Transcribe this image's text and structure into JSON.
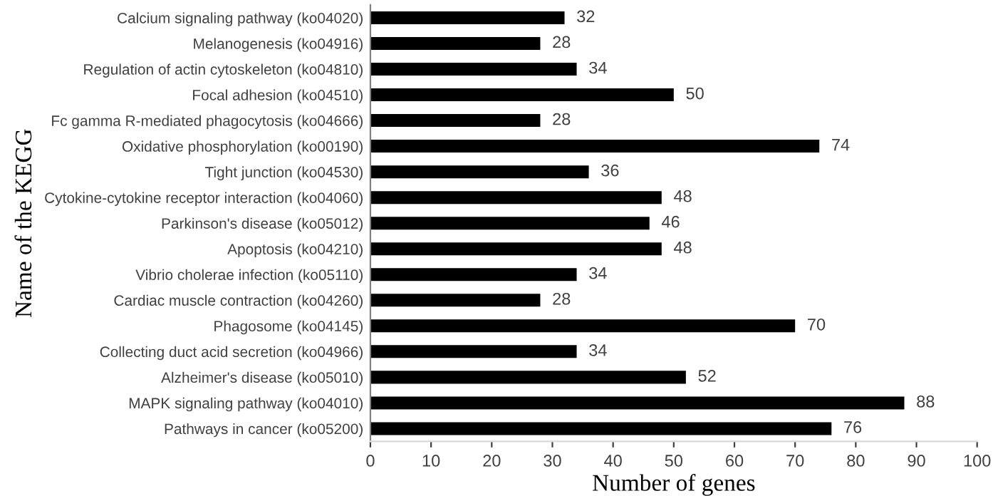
{
  "chart_data": {
    "type": "bar",
    "orientation": "horizontal",
    "xlabel": "Number of genes",
    "ylabel": "Name of the KEGG",
    "categories": [
      "Calcium signaling pathway (ko04020)",
      "Melanogenesis (ko04916)",
      "Regulation of actin cytoskeleton (ko04810)",
      "Focal adhesion (ko04510)",
      "Fc gamma R-mediated phagocytosis (ko04666)",
      "Oxidative phosphorylation (ko00190)",
      "Tight junction (ko04530)",
      "Cytokine-cytokine receptor interaction (ko04060)",
      "Parkinson's disease (ko05012)",
      "Apoptosis (ko04210)",
      "Vibrio cholerae infection (ko05110)",
      "Cardiac muscle contraction (ko04260)",
      "Phagosome (ko04145)",
      "Collecting duct acid secretion (ko04966)",
      "Alzheimer's disease (ko05010)",
      "MAPK signaling pathway (ko04010)",
      "Pathways in cancer (ko05200)"
    ],
    "values": [
      32,
      28,
      34,
      50,
      28,
      74,
      36,
      48,
      46,
      48,
      34,
      28,
      70,
      34,
      52,
      88,
      76
    ],
    "color": "#000000",
    "data_labels": true,
    "grid": false,
    "legend": false,
    "xlim": [
      0,
      100
    ],
    "xticks": [
      0,
      10,
      20,
      30,
      40,
      50,
      60,
      70,
      80,
      90,
      100
    ]
  }
}
